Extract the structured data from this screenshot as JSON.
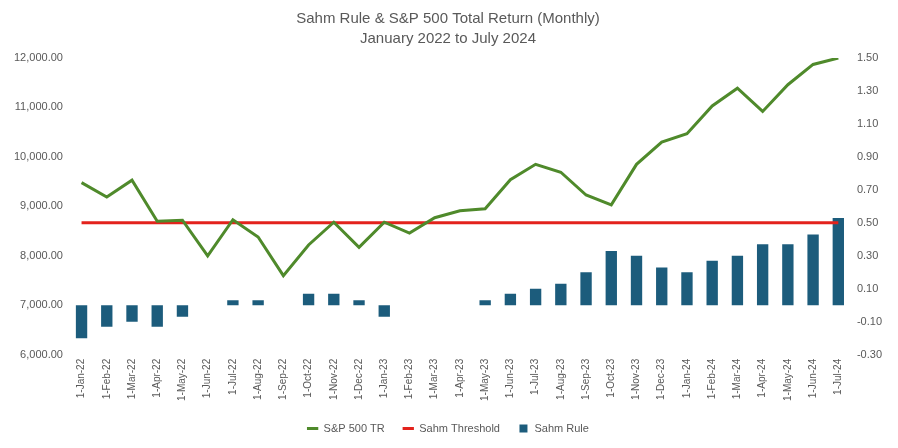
{
  "chart_data": {
    "type": "bar",
    "title": "Sahm Rule & S&P 500 Total Return (Monthly)",
    "subtitle": "January 2022 to July 2024",
    "categories": [
      "1-Jan-22",
      "1-Feb-22",
      "1-Mar-22",
      "1-Apr-22",
      "1-May-22",
      "1-Jun-22",
      "1-Jul-22",
      "1-Aug-22",
      "1-Sep-22",
      "1-Oct-22",
      "1-Nov-22",
      "1-Dec-22",
      "1-Jan-23",
      "1-Feb-23",
      "1-Mar-23",
      "1-Apr-23",
      "1-May-23",
      "1-Jun-23",
      "1-Jul-23",
      "1-Aug-23",
      "1-Sep-23",
      "1-Oct-23",
      "1-Nov-23",
      "1-Dec-23",
      "1-Jan-24",
      "1-Feb-24",
      "1-Mar-24",
      "1-Apr-24",
      "1-May-24",
      "1-Jun-24",
      "1-Jul-24"
    ],
    "series": [
      {
        "name": "Sahm Rule",
        "type": "bar",
        "axis": "y2",
        "color": "#1c5c7c",
        "values": [
          -0.2,
          -0.13,
          -0.1,
          -0.13,
          -0.07,
          0,
          0.03,
          0.03,
          0,
          0.07,
          0.07,
          0.03,
          -0.07,
          0,
          0,
          0,
          0.03,
          0.07,
          0.1,
          0.13,
          0.2,
          0.33,
          0.3,
          0.23,
          0.2,
          0.27,
          0.3,
          0.37,
          0.37,
          0.43,
          0.53
        ]
      },
      {
        "name": "S&P 500 TR",
        "type": "line",
        "color": "#4f8a2b",
        "values": [
          9480,
          9190,
          9530,
          8700,
          8720,
          8000,
          8730,
          8380,
          7600,
          8220,
          8680,
          8170,
          8680,
          8460,
          8770,
          8910,
          8950,
          9540,
          9850,
          9690,
          9230,
          9030,
          9850,
          10300,
          10470,
          11030,
          11390,
          10920,
          11460,
          11870,
          12000
        ]
      },
      {
        "name": "Sahm Threshold",
        "type": "line",
        "axis": "y2",
        "color": "#e3221c",
        "values": [
          0.5,
          0.5,
          0.5,
          0.5,
          0.5,
          0.5,
          0.5,
          0.5,
          0.5,
          0.5,
          0.5,
          0.5,
          0.5,
          0.5,
          0.5,
          0.5,
          0.5,
          0.5,
          0.5,
          0.5,
          0.5,
          0.5,
          0.5,
          0.5,
          0.5,
          0.5,
          0.5,
          0.5,
          0.5,
          0.5,
          0.5
        ]
      }
    ],
    "ylim": [
      6000,
      12000
    ],
    "yticks": [
      {
        "value": 6000,
        "label": "6,000.00"
      },
      {
        "value": 7000,
        "label": "7,000.00"
      },
      {
        "value": 8000,
        "label": "8,000.00"
      },
      {
        "value": 9000,
        "label": "9,000.00"
      },
      {
        "value": 10000,
        "label": "10,000.00"
      },
      {
        "value": 11000,
        "label": "11,000.00"
      },
      {
        "value": 12000,
        "label": "12,000.00"
      }
    ],
    "y2lim": [
      -0.3,
      1.5
    ],
    "y2ticks": [
      {
        "value": -0.3,
        "label": "-0.30"
      },
      {
        "value": -0.1,
        "label": "-0.10"
      },
      {
        "value": 0.1,
        "label": "0.10"
      },
      {
        "value": 0.3,
        "label": "0.30"
      },
      {
        "value": 0.5,
        "label": "0.50"
      },
      {
        "value": 0.7,
        "label": "0.70"
      },
      {
        "value": 0.9,
        "label": "0.90"
      },
      {
        "value": 1.1,
        "label": "1.10"
      },
      {
        "value": 1.3,
        "label": "1.30"
      },
      {
        "value": 1.5,
        "label": "1.50"
      }
    ],
    "grid": false,
    "legend": "bottom"
  }
}
